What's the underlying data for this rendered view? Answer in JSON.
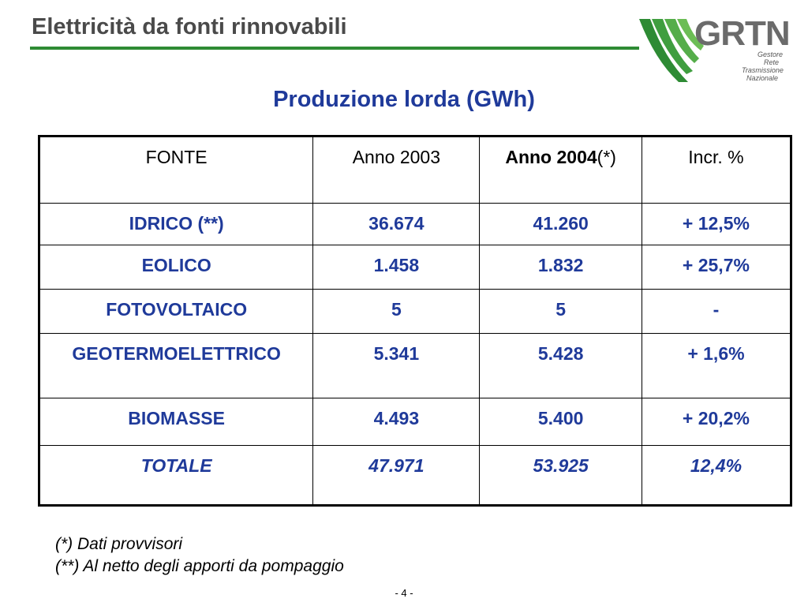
{
  "header": {
    "title": "Elettricità da fonti rinnovabili"
  },
  "logo": {
    "name": "GRTN",
    "subtitle_lines": [
      "Gestore",
      "Rete",
      "Trasmissione",
      "Nazionale"
    ]
  },
  "main": {
    "title": "Produzione lorda (GWh)"
  },
  "table": {
    "headers": {
      "fonte": "FONTE",
      "anno_2003": "Anno 2003",
      "anno_2004": "Anno 2004",
      "anno_2004_suffix": "(*)",
      "incr": "Incr. %"
    },
    "rows": [
      {
        "fonte": "IDRICO (**)",
        "anno_2003": "36.674",
        "anno_2004": "41.260",
        "incr": "+ 12,5%"
      },
      {
        "fonte": "EOLICO",
        "anno_2003": "1.458",
        "anno_2004": "1.832",
        "incr": "+ 25,7%"
      },
      {
        "fonte": "FOTOVOLTAICO",
        "anno_2003": "5",
        "anno_2004": "5",
        "incr": "-"
      },
      {
        "fonte": "GEOTERMOELETTRICO",
        "anno_2003": "5.341",
        "anno_2004": "5.428",
        "incr": "+ 1,6%"
      },
      {
        "fonte": "BIOMASSE",
        "anno_2003": "4.493",
        "anno_2004": "5.400",
        "incr": "+ 20,2%"
      }
    ],
    "total": {
      "fonte": "TOTALE",
      "anno_2003": "47.971",
      "anno_2004": "53.925",
      "incr": "12,4%"
    }
  },
  "notes": [
    "(*) Dati provvisori",
    "(**) Al netto degli apporti da pompaggio"
  ],
  "page_number": "- 4 -",
  "colors": {
    "accent_green": "#2e8b34",
    "title_blue": "#1f3a9a",
    "header_gray": "#4a4a4a"
  }
}
